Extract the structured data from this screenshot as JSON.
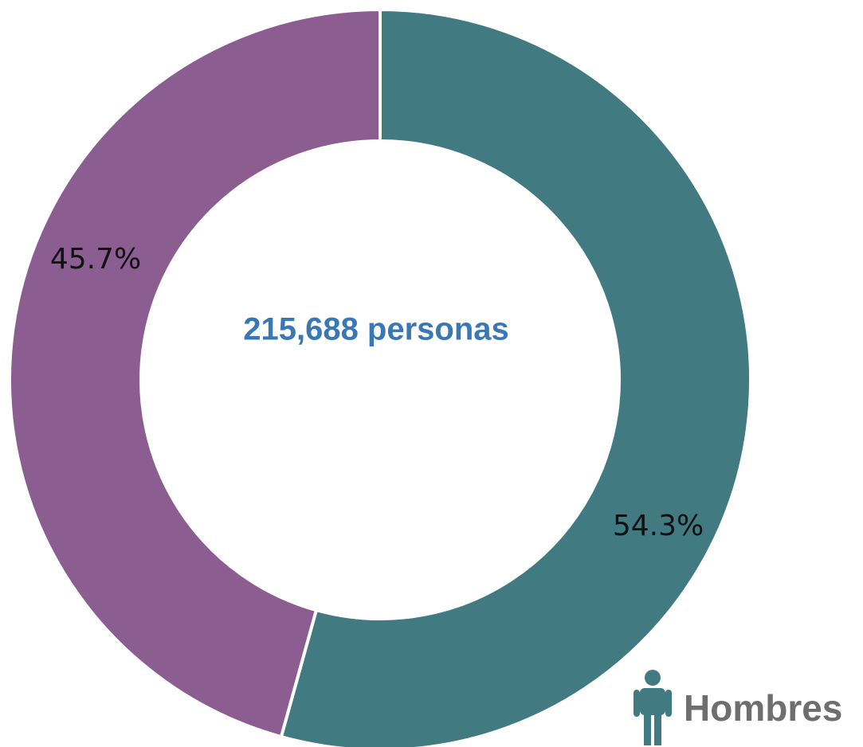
{
  "chart_data": {
    "type": "donut",
    "center_label": "215,688 personas",
    "categories": [
      "Hombres",
      null
    ],
    "values": [
      54.3,
      45.7
    ],
    "value_labels": [
      "54.3%",
      "45.7%"
    ],
    "colors": [
      "#427a82",
      "#8b5d90"
    ]
  }
}
